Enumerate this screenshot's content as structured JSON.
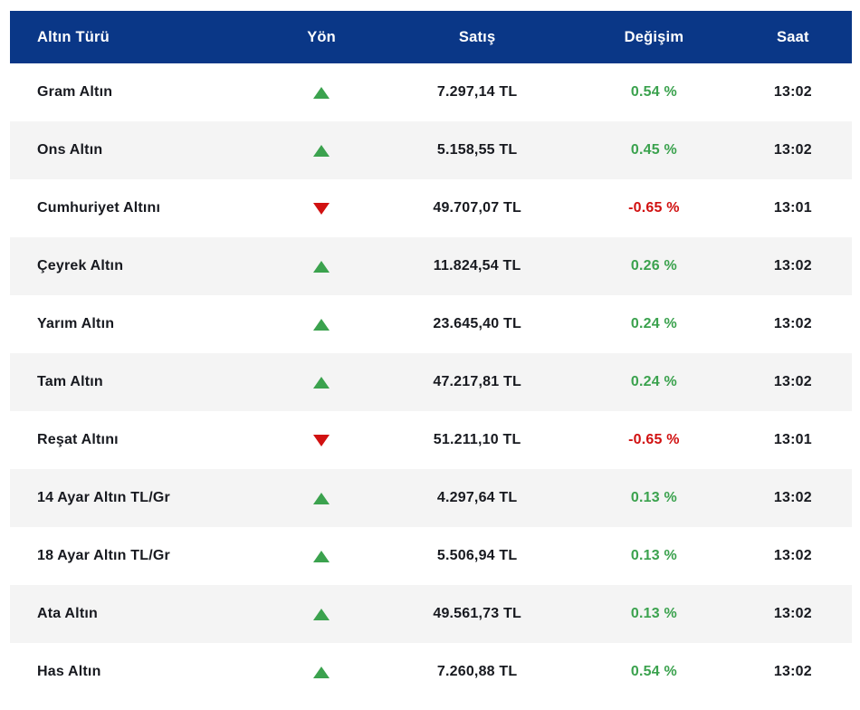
{
  "colors": {
    "header_background": "#0a3787",
    "header_text": "#ffffff",
    "row_alt_background": "#f4f4f4",
    "text": "#17191f",
    "up_green": "#3ba24e",
    "down_red": "#d11111"
  },
  "table": {
    "headers": {
      "type": "Altın Türü",
      "direction": "Yön",
      "price": "Satış",
      "change": "Değişim",
      "time": "Saat"
    },
    "rows": [
      {
        "name": "Gram Altın",
        "direction": "up",
        "price": "7.297,14 TL",
        "change": "0.54 %",
        "time": "13:02"
      },
      {
        "name": "Ons Altın",
        "direction": "up",
        "price": "5.158,55 TL",
        "change": "0.45 %",
        "time": "13:02"
      },
      {
        "name": "Cumhuriyet Altını",
        "direction": "down",
        "price": "49.707,07 TL",
        "change": "-0.65 %",
        "time": "13:01"
      },
      {
        "name": "Çeyrek Altın",
        "direction": "up",
        "price": "11.824,54 TL",
        "change": "0.26 %",
        "time": "13:02"
      },
      {
        "name": "Yarım Altın",
        "direction": "up",
        "price": "23.645,40 TL",
        "change": "0.24 %",
        "time": "13:02"
      },
      {
        "name": "Tam Altın",
        "direction": "up",
        "price": "47.217,81 TL",
        "change": "0.24 %",
        "time": "13:02"
      },
      {
        "name": "Reşat Altını",
        "direction": "down",
        "price": "51.211,10 TL",
        "change": "-0.65 %",
        "time": "13:01"
      },
      {
        "name": "14 Ayar Altın TL/Gr",
        "direction": "up",
        "price": "4.297,64 TL",
        "change": "0.13 %",
        "time": "13:02"
      },
      {
        "name": "18 Ayar Altın TL/Gr",
        "direction": "up",
        "price": "5.506,94 TL",
        "change": "0.13 %",
        "time": "13:02"
      },
      {
        "name": "Ata Altın",
        "direction": "up",
        "price": "49.561,73 TL",
        "change": "0.13 %",
        "time": "13:02"
      },
      {
        "name": "Has Altın",
        "direction": "up",
        "price": "7.260,88 TL",
        "change": "0.54 %",
        "time": "13:02"
      }
    ]
  }
}
